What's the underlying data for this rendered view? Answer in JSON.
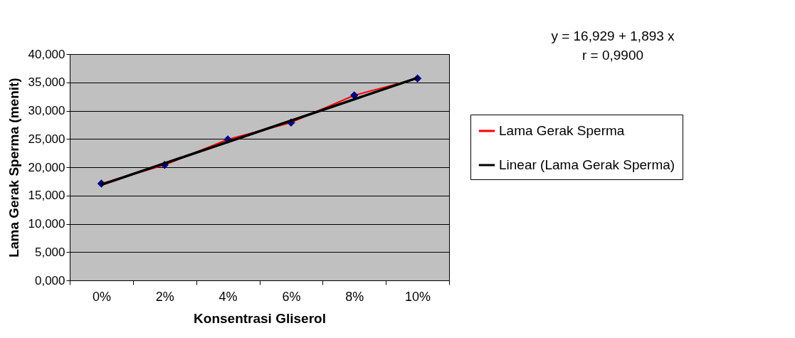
{
  "chart_data": {
    "type": "line",
    "xlabel": "Konsentrasi Gliserol",
    "ylabel": "Lama Gerak Sperma (menit)",
    "categories": [
      "0%",
      "2%",
      "4%",
      "6%",
      "8%",
      "10%"
    ],
    "series": [
      {
        "name": "Lama Gerak Sperma",
        "color": "#ff0000",
        "colors": [
          "#000080",
          "#000080",
          "#000080",
          "#000080",
          "#000080",
          "#000080"
        ],
        "marker": "diamond",
        "values": [
          17.1,
          20.4,
          24.9,
          27.9,
          32.7,
          35.7
        ]
      },
      {
        "name": "Linear (Lama Gerak Sperma)",
        "color": "#000000",
        "marker": "none",
        "x": [
          "0%",
          "10%"
        ],
        "values": [
          16.9,
          35.8
        ]
      }
    ],
    "ylim": [
      0,
      40
    ],
    "yticks": [
      {
        "value": 0,
        "label": "0,000"
      },
      {
        "value": 5,
        "label": "5,000"
      },
      {
        "value": 10,
        "label": "10,000"
      },
      {
        "value": 15,
        "label": "15,000"
      },
      {
        "value": 20,
        "label": "20,000"
      },
      {
        "value": 25,
        "label": "25,000"
      },
      {
        "value": 30,
        "label": "30,000"
      },
      {
        "value": 35,
        "label": "35,000"
      },
      {
        "value": 40,
        "label": "40,000"
      }
    ],
    "grid": "y",
    "legend": "right",
    "annotations": [
      "y = 16,929 + 1,893 x",
      "r = 0,9900"
    ]
  }
}
